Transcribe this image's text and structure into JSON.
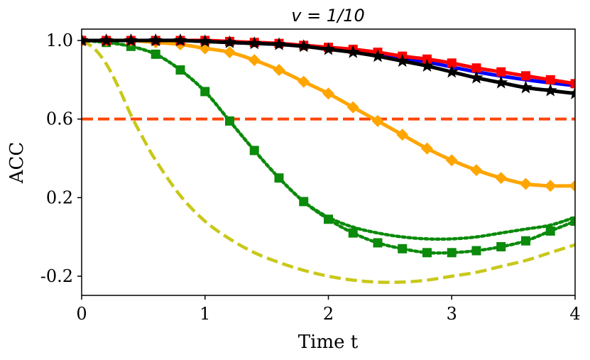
{
  "chart_data": {
    "type": "line",
    "title": "v = 1/10",
    "xlabel": "Time t",
    "ylabel": "ACC",
    "xlim": [
      0,
      4
    ],
    "ylim": [
      -0.3,
      1.07
    ],
    "xticks": [
      0,
      1,
      2,
      3,
      4
    ],
    "xtick_labels": [
      "0",
      "1",
      "2",
      "3",
      "4"
    ],
    "yticks": [
      1.0,
      0.6,
      0.2,
      -0.2
    ],
    "ytick_labels": [
      "1.0",
      "0.6",
      "0.2",
      "-0.2"
    ],
    "grid": false,
    "legend": "none",
    "series": [
      {
        "name": "olive-dashed",
        "color": "#c8c81a",
        "style": "dashed",
        "marker": "none",
        "x": [
          0,
          0.1,
          0.2,
          0.3,
          0.4,
          0.5,
          0.6,
          0.8,
          1.0,
          1.2,
          1.4,
          1.6,
          1.8,
          2.0,
          2.2,
          2.4,
          2.6,
          2.8,
          3.0,
          3.2,
          3.4,
          3.6,
          3.8,
          4.0
        ],
        "y": [
          1.0,
          0.96,
          0.88,
          0.76,
          0.62,
          0.5,
          0.39,
          0.21,
          0.08,
          -0.01,
          -0.08,
          -0.13,
          -0.17,
          -0.2,
          -0.22,
          -0.23,
          -0.23,
          -0.22,
          -0.2,
          -0.18,
          -0.15,
          -0.12,
          -0.08,
          -0.04
        ]
      },
      {
        "name": "green-dotted",
        "color": "#0b8a0b",
        "style": "dotted",
        "marker": "none",
        "x": [
          0,
          0.2,
          0.4,
          0.6,
          0.8,
          1.0,
          1.2,
          1.4,
          1.6,
          1.8,
          2.0,
          2.2,
          2.4,
          2.6,
          2.8,
          3.0,
          3.2,
          3.4,
          3.6,
          3.8,
          4.0
        ],
        "y": [
          1.0,
          0.99,
          0.97,
          0.93,
          0.85,
          0.74,
          0.59,
          0.44,
          0.3,
          0.18,
          0.1,
          0.05,
          0.02,
          0.0,
          -0.01,
          -0.01,
          0.0,
          0.02,
          0.04,
          0.06,
          0.1
        ]
      },
      {
        "name": "green-dotted-squares",
        "color": "#0b8a0b",
        "style": "dotted",
        "marker": "square",
        "x": [
          0,
          0.2,
          0.4,
          0.6,
          0.8,
          1.0,
          1.2,
          1.4,
          1.6,
          1.8,
          2.0,
          2.2,
          2.4,
          2.6,
          2.8,
          3.0,
          3.2,
          3.4,
          3.6,
          3.8,
          4.0
        ],
        "y": [
          1.0,
          0.99,
          0.97,
          0.93,
          0.85,
          0.74,
          0.59,
          0.44,
          0.3,
          0.18,
          0.09,
          0.02,
          -0.03,
          -0.06,
          -0.08,
          -0.08,
          -0.07,
          -0.05,
          -0.02,
          0.03,
          0.08
        ]
      },
      {
        "name": "orange-diamonds",
        "color": "#ffa500",
        "style": "solid",
        "marker": "diamond",
        "x": [
          0,
          0.2,
          0.4,
          0.6,
          0.8,
          1.0,
          1.2,
          1.4,
          1.6,
          1.8,
          2.0,
          2.2,
          2.4,
          2.6,
          2.8,
          3.0,
          3.2,
          3.4,
          3.6,
          3.8,
          4.0
        ],
        "y": [
          1.0,
          1.0,
          1.0,
          0.99,
          0.98,
          0.96,
          0.94,
          0.9,
          0.85,
          0.79,
          0.73,
          0.66,
          0.59,
          0.52,
          0.45,
          0.39,
          0.34,
          0.3,
          0.27,
          0.26,
          0.26
        ]
      },
      {
        "name": "blue-solid",
        "color": "#0000ff",
        "style": "solid",
        "marker": "none",
        "x": [
          0,
          0.4,
          0.8,
          1.2,
          1.6,
          2.0,
          2.4,
          2.8,
          3.2,
          3.6,
          4.0
        ],
        "y": [
          1.0,
          1.0,
          1.0,
          0.99,
          0.98,
          0.96,
          0.93,
          0.89,
          0.84,
          0.8,
          0.77
        ]
      },
      {
        "name": "red-squares",
        "color": "#ff0000",
        "style": "solid",
        "marker": "square",
        "x": [
          0,
          0.2,
          0.4,
          0.6,
          0.8,
          1.0,
          1.2,
          1.4,
          1.6,
          1.8,
          2.0,
          2.2,
          2.4,
          2.6,
          2.8,
          3.0,
          3.2,
          3.4,
          3.6,
          3.8,
          4.0
        ],
        "y": [
          1.0,
          1.0,
          1.0,
          1.0,
          1.0,
          1.0,
          0.995,
          0.99,
          0.985,
          0.975,
          0.965,
          0.955,
          0.94,
          0.92,
          0.905,
          0.885,
          0.86,
          0.84,
          0.82,
          0.8,
          0.78
        ]
      },
      {
        "name": "black-stars",
        "color": "#000000",
        "style": "solid",
        "marker": "star",
        "x": [
          0,
          0.2,
          0.4,
          0.6,
          0.8,
          1.0,
          1.2,
          1.4,
          1.6,
          1.8,
          2.0,
          2.2,
          2.4,
          2.6,
          2.8,
          3.0,
          3.2,
          3.4,
          3.6,
          3.8,
          4.0
        ],
        "y": [
          1.0,
          1.0,
          1.0,
          1.0,
          1.0,
          0.995,
          0.99,
          0.985,
          0.98,
          0.97,
          0.955,
          0.94,
          0.92,
          0.895,
          0.87,
          0.84,
          0.81,
          0.785,
          0.76,
          0.745,
          0.73
        ]
      }
    ],
    "hlines": [
      {
        "name": "threshold",
        "y": 0.6,
        "color": "#ff4500",
        "style": "dashed"
      }
    ]
  }
}
